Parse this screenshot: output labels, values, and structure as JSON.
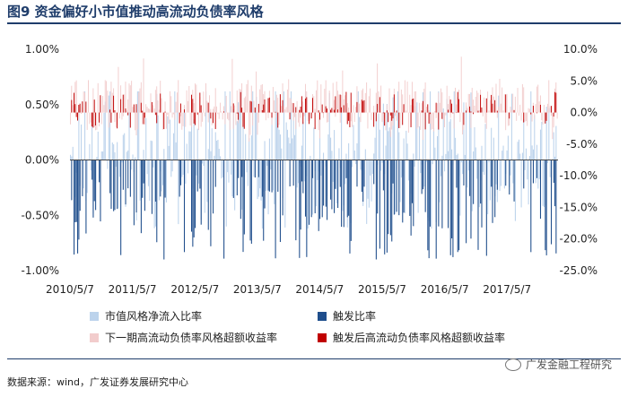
{
  "page": {
    "title": "图9  资金偏好小市值推动高流动负债率风格",
    "source": "数据来源：wind，广发证券发展研究中心",
    "watermark": "广发金融工程研究",
    "watermark_icon": "wechat-icon"
  },
  "colors": {
    "flow": "#bcd3ec",
    "trigger": "#1f4e8c",
    "next_excess": "#f2cccc",
    "post_excess": "#c00000",
    "title": "#1f3d6b",
    "axis": "#444444"
  },
  "chart_data": {
    "type": "bar",
    "title": "",
    "x_tick_labels": [
      "2010/5/7",
      "2011/5/7",
      "2012/5/7",
      "2013/5/7",
      "2014/5/7",
      "2015/5/7",
      "2016/5/7",
      "2017/5/7"
    ],
    "x_range": [
      "2010/5/7",
      "2018/3/1"
    ],
    "y_left": {
      "ticks": [
        "1.00%",
        "0.50%",
        "0.00%",
        "-0.50%",
        "-1.00%"
      ],
      "ylim": [
        -1.0,
        1.0
      ],
      "unit": "%"
    },
    "y_right": {
      "ticks": [
        "10.0%",
        "5.0%",
        "0.0%",
        "-5.0%",
        "-10.0%",
        "-15.0%",
        "-20.0%",
        "-25.0%"
      ],
      "ylim": [
        -25.0,
        10.0
      ],
      "unit": "%"
    },
    "legend_placement": "bottom",
    "series": [
      {
        "name": "市值风格净流入比率",
        "axis": "left",
        "color": "#bcd3ec",
        "description": "weekly values, mostly between -0.6% and 0.6%",
        "typical_range": [
          -0.6,
          0.6
        ]
      },
      {
        "name": "触发比率",
        "axis": "left",
        "color": "#1f4e8c",
        "description": "negative-only values between -0.1% and -0.97%",
        "typical_range": [
          -0.95,
          -0.1
        ]
      },
      {
        "name": "下一期高流动负债率风格超额收益率",
        "axis": "right",
        "color": "#f2cccc",
        "description": "values roughly -4% to 10%",
        "typical_range": [
          -4.0,
          10.0
        ]
      },
      {
        "name": "触发后高流动负债率风格超额收益率",
        "axis": "right",
        "color": "#c00000",
        "description": "values roughly -4% to 5%",
        "typical_range": [
          -4.0,
          5.0
        ]
      }
    ],
    "grid": false
  }
}
